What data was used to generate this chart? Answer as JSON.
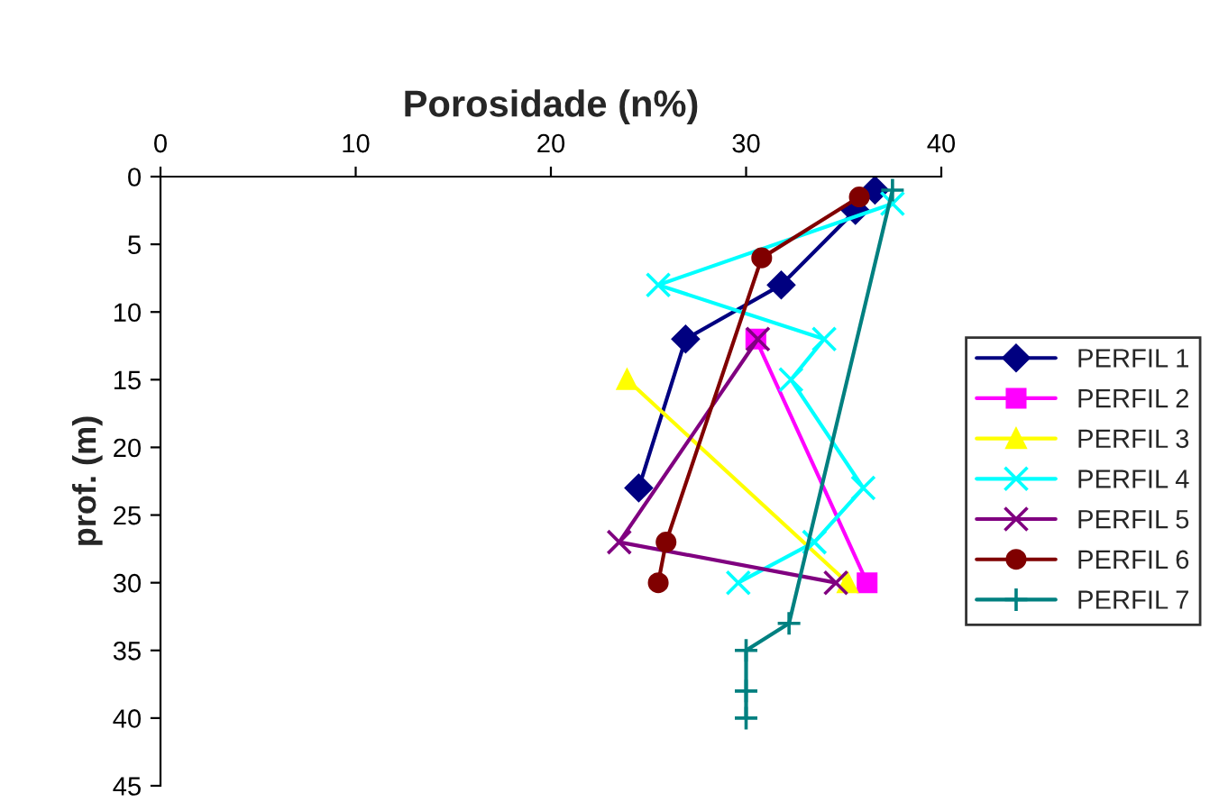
{
  "chart_data": {
    "type": "line",
    "title": "Porosidade (n%)",
    "ylabel": "prof. (m)",
    "xlim": [
      0,
      40
    ],
    "xticks": [
      0,
      10,
      20,
      30,
      40
    ],
    "ylim": [
      45,
      0
    ],
    "yticks": [
      0,
      5,
      10,
      15,
      20,
      25,
      30,
      35,
      40,
      45
    ],
    "grid": false,
    "legend": "right",
    "series": [
      {
        "name": "PERFIL 1",
        "color": "#000080",
        "marker": "diamond",
        "x": [
          36.6,
          35.6,
          31.8,
          26.9,
          24.5
        ],
        "values": [
          1,
          2.5,
          8,
          12,
          23
        ]
      },
      {
        "name": "PERFIL 2",
        "color": "#ff00ff",
        "marker": "square",
        "x": [
          30.5,
          36.2
        ],
        "values": [
          12,
          30
        ]
      },
      {
        "name": "PERFIL 3",
        "color": "#ffff00",
        "marker": "triangle",
        "x": [
          23.9,
          35.2
        ],
        "values": [
          15,
          30
        ]
      },
      {
        "name": "PERFIL 4",
        "color": "#00ffff",
        "marker": "cross",
        "x": [
          37.5,
          25.5,
          34,
          32.3,
          36,
          33.5,
          29.6
        ],
        "values": [
          2,
          8,
          12,
          15,
          23,
          27,
          30
        ]
      },
      {
        "name": "PERFIL 5",
        "color": "#800080",
        "marker": "cross",
        "x": [
          30.6,
          23.5,
          34.6
        ],
        "values": [
          12,
          27,
          30
        ]
      },
      {
        "name": "PERFIL 6",
        "color": "#800000",
        "marker": "circle",
        "x": [
          35.8,
          30.8,
          25.9,
          25.5
        ],
        "values": [
          1.5,
          6,
          27,
          30
        ]
      },
      {
        "name": "PERFIL 7",
        "color": "#008080",
        "marker": "plus",
        "x": [
          37.5,
          32.2,
          30,
          30,
          30
        ],
        "values": [
          1,
          33,
          35,
          38,
          40
        ]
      }
    ]
  }
}
